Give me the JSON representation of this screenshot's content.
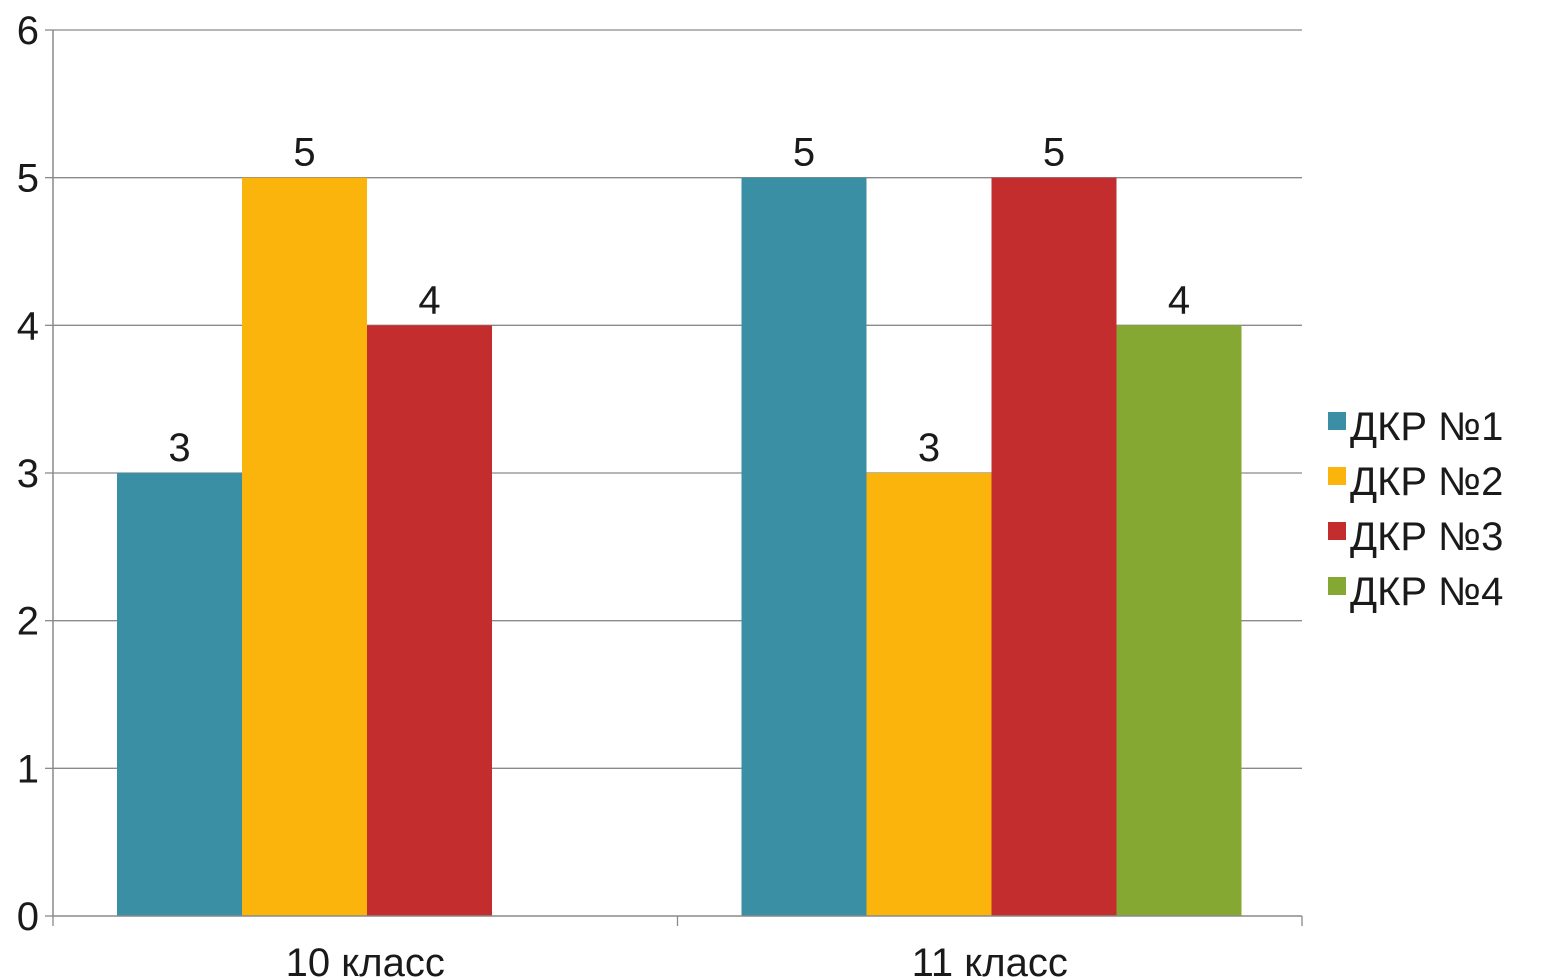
{
  "chart_data": {
    "type": "bar",
    "title": "",
    "xlabel": "",
    "ylabel": "",
    "categories": [
      "10 класс",
      "11 класс"
    ],
    "ylim": [
      0,
      6
    ],
    "yticks": [
      0,
      1,
      2,
      3,
      4,
      5,
      6
    ],
    "grid": true,
    "legend_position": "right",
    "data_labels": true,
    "series": [
      {
        "name": "ДКР №1",
        "color": "#3a8fa5",
        "values": [
          3,
          5
        ]
      },
      {
        "name": "ДКР №2",
        "color": "#fbb40c",
        "values": [
          5,
          3
        ]
      },
      {
        "name": "ДКР №3",
        "color": "#c32d2d",
        "values": [
          4,
          5
        ]
      },
      {
        "name": "ДКР №4",
        "color": "#84a832",
        "values": [
          null,
          4
        ]
      }
    ]
  }
}
